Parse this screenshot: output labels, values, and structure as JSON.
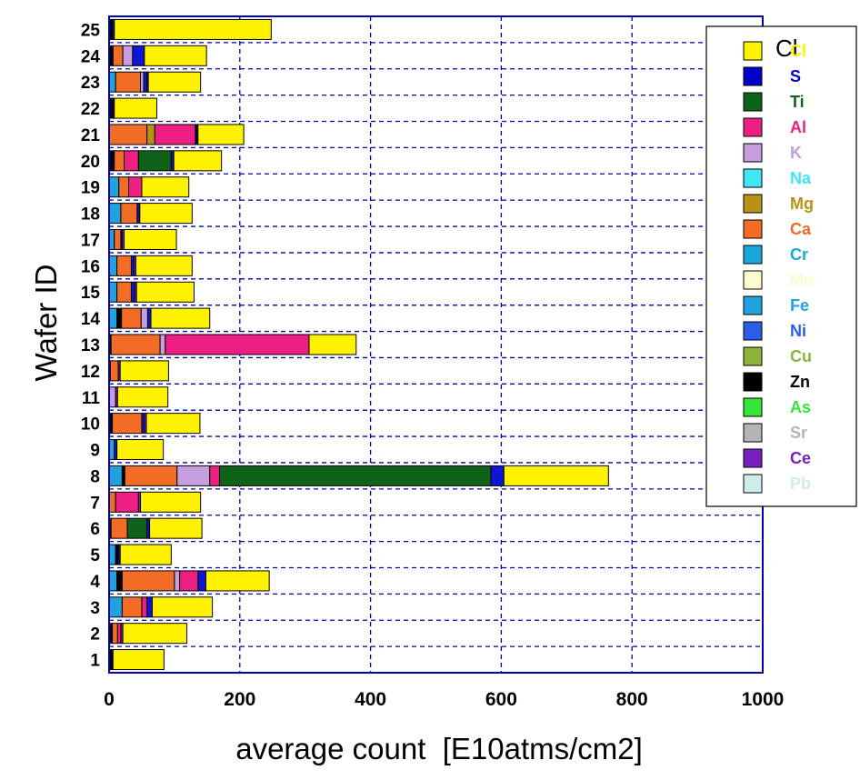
{
  "chart_data": {
    "type": "bar",
    "orientation": "horizontal",
    "stacked": true,
    "title": "",
    "xlabel": "average count  [E10atms/cm2]",
    "ylabel": "Wafer ID",
    "xlim": [
      0,
      1000
    ],
    "x_ticks": [
      0,
      200,
      400,
      600,
      800,
      1000
    ],
    "grid": true,
    "legend_position": "top-right",
    "legend_title": "Cl",
    "categories": [
      "1",
      "2",
      "3",
      "4",
      "5",
      "6",
      "7",
      "8",
      "9",
      "10",
      "11",
      "12",
      "13",
      "14",
      "15",
      "16",
      "17",
      "18",
      "19",
      "20",
      "21",
      "22",
      "23",
      "24",
      "25"
    ],
    "series": [
      {
        "name": "Fe",
        "color": "#1fa2dd",
        "values": [
          0,
          0,
          20,
          12,
          10,
          0,
          0,
          20,
          8,
          0,
          0,
          0,
          0,
          12,
          12,
          12,
          8,
          18,
          15,
          0,
          0,
          0,
          10,
          0,
          0
        ]
      },
      {
        "name": "Zn",
        "color": "#000000",
        "values": [
          6,
          5,
          0,
          8,
          4,
          3,
          0,
          4,
          0,
          5,
          0,
          2,
          3,
          7,
          0,
          0,
          0,
          0,
          0,
          8,
          0,
          4,
          0,
          6,
          5
        ]
      },
      {
        "name": "Ca",
        "color": "#f26c25",
        "values": [
          0,
          8,
          30,
          80,
          0,
          25,
          10,
          80,
          0,
          45,
          0,
          12,
          75,
          30,
          22,
          22,
          10,
          25,
          15,
          15,
          58,
          0,
          38,
          15,
          0
        ]
      },
      {
        "name": "Mg",
        "color": "#b8901a",
        "values": [
          0,
          0,
          0,
          0,
          0,
          0,
          0,
          0,
          0,
          0,
          0,
          0,
          0,
          0,
          0,
          0,
          0,
          0,
          0,
          0,
          12,
          0,
          0,
          0,
          0
        ]
      },
      {
        "name": "K",
        "color": "#c49ede",
        "values": [
          0,
          0,
          0,
          8,
          0,
          0,
          0,
          50,
          0,
          0,
          10,
          0,
          8,
          10,
          0,
          0,
          0,
          0,
          0,
          0,
          0,
          0,
          5,
          15,
          0
        ]
      },
      {
        "name": "Al",
        "color": "#ee1f83",
        "values": [
          0,
          5,
          8,
          28,
          0,
          0,
          35,
          15,
          0,
          0,
          0,
          0,
          220,
          0,
          0,
          0,
          0,
          0,
          20,
          22,
          62,
          0,
          0,
          0,
          0
        ]
      },
      {
        "name": "Ti",
        "color": "#0f6318",
        "values": [
          0,
          0,
          0,
          0,
          0,
          30,
          0,
          415,
          0,
          0,
          0,
          0,
          0,
          0,
          0,
          0,
          0,
          0,
          0,
          50,
          0,
          0,
          0,
          0,
          0
        ]
      },
      {
        "name": "S",
        "color": "#0d16d6",
        "values": [
          0,
          0,
          8,
          12,
          3,
          4,
          0,
          20,
          4,
          4,
          0,
          0,
          0,
          5,
          5,
          4,
          2,
          4,
          0,
          4,
          2,
          2,
          5,
          18,
          3
        ]
      },
      {
        "name": "Ce",
        "color": "#7a1fbf",
        "values": [
          0,
          3,
          0,
          0,
          0,
          0,
          3,
          0,
          0,
          3,
          3,
          3,
          0,
          0,
          3,
          3,
          3,
          0,
          0,
          0,
          2,
          2,
          2,
          0,
          0
        ]
      },
      {
        "name": "Cl",
        "color": "#fff200",
        "values": [
          78,
          98,
          92,
          97,
          78,
          80,
          92,
          160,
          71,
          82,
          77,
          74,
          72,
          90,
          88,
          86,
          80,
          80,
          72,
          73,
          70,
          65,
          80,
          95,
          240
        ]
      }
    ]
  },
  "legend": [
    {
      "label": "Cl",
      "swatch": "#fff200",
      "text_color": "#fff200"
    },
    {
      "label": "S",
      "swatch": "#0000cc",
      "text_color": "#0000cc"
    },
    {
      "label": "Ti",
      "swatch": "#0f6318",
      "text_color": "#0f6318"
    },
    {
      "label": "Al",
      "swatch": "#ee1f83",
      "text_color": "#ee1f83"
    },
    {
      "label": "K",
      "swatch": "#c49ede",
      "text_color": "#c49ede"
    },
    {
      "label": "Na",
      "swatch": "#3fe6f5",
      "text_color": "#3fe6f5"
    },
    {
      "label": "Mg",
      "swatch": "#b8901a",
      "text_color": "#b8901a"
    },
    {
      "label": "Ca",
      "swatch": "#f26c25",
      "text_color": "#f26c25"
    },
    {
      "label": "Cr",
      "swatch": "#1aa7d8",
      "text_color": "#1aa7d8"
    },
    {
      "label": "Mn",
      "swatch": "#fffbd0",
      "text_color": "#fffbd0"
    },
    {
      "label": "Fe",
      "swatch": "#1fa2dd",
      "text_color": "#1fa2dd"
    },
    {
      "label": "Ni",
      "swatch": "#2a5ee8",
      "text_color": "#2a5ee8"
    },
    {
      "label": "Cu",
      "swatch": "#8db33a",
      "text_color": "#8db33a"
    },
    {
      "label": "Zn",
      "swatch": "#000000",
      "text_color": "#000000"
    },
    {
      "label": "As",
      "swatch": "#33e63a",
      "text_color": "#33e63a"
    },
    {
      "label": "Sr",
      "swatch": "#b5b5b5",
      "text_color": "#b5b5b5"
    },
    {
      "label": "Ce",
      "swatch": "#7a1fbf",
      "text_color": "#7a1fbf"
    },
    {
      "label": "Pb",
      "swatch": "#cfecec",
      "text_color": "#cfecec"
    }
  ]
}
